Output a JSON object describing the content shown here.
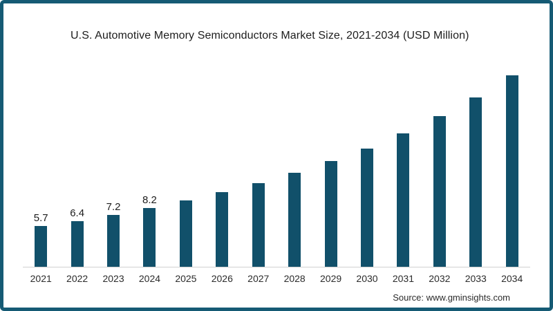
{
  "frame": {
    "border_color": "#155a74",
    "background_color": "#ffffff"
  },
  "chart_data": {
    "type": "bar",
    "title": "U.S. Automotive Memory Semiconductors Market Size, 2021-2034 (USD Million)",
    "categories": [
      "2021",
      "2022",
      "2023",
      "2024",
      "2025",
      "2026",
      "2027",
      "2028",
      "2029",
      "2030",
      "2031",
      "2032",
      "2033",
      "2034"
    ],
    "values": [
      5.7,
      6.4,
      7.2,
      8.2,
      9.3,
      10.4,
      11.7,
      13.1,
      14.8,
      16.5,
      18.6,
      21.0,
      23.7,
      26.7
    ],
    "bar_labels": [
      "5.7",
      "6.4",
      "7.2",
      "8.2",
      "",
      "",
      "",
      "",
      "",
      "",
      "",
      "",
      "",
      ""
    ],
    "xlabel": "",
    "ylabel": "",
    "ylim": [
      0,
      28
    ],
    "grid": false,
    "legend": false,
    "bar_color": "#11506a",
    "axis_line_color": "#d0d0d0",
    "label_color": "#1c1c1c"
  },
  "source": {
    "text": "Source: www.gminsights.com"
  }
}
